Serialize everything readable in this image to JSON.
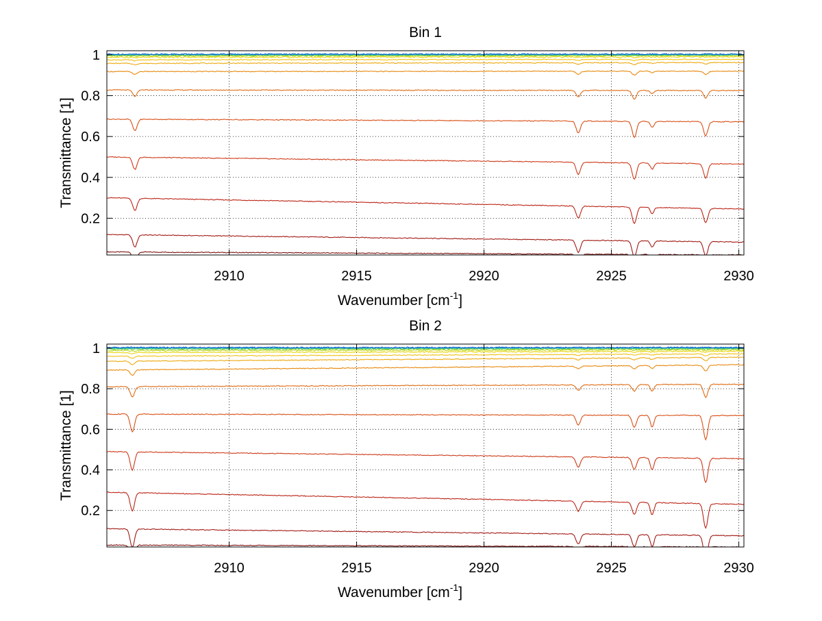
{
  "colors": {
    "background": "#ffffff",
    "axes": "#000000",
    "grid": "#000000"
  },
  "chart_data": [
    {
      "type": "line",
      "title": "Bin 1",
      "xlabel_main": "Wavenumber [cm",
      "xlabel_sup": "-1",
      "xlabel_end": "]",
      "ylabel": "Transmittance [1]",
      "xlim": [
        2905.2,
        2930.2
      ],
      "ylim": [
        0.02,
        1.02
      ],
      "xticks": [
        2910,
        2915,
        2920,
        2925,
        2930
      ],
      "yticks": [
        0.2,
        0.4,
        0.6,
        0.8,
        1
      ],
      "grid": true,
      "absorption_lines": [
        {
          "x": 2906.3,
          "width": 0.12,
          "rel_depth": 0.06
        },
        {
          "x": 2923.7,
          "width": 0.12,
          "rel_depth": 0.06
        },
        {
          "x": 2925.9,
          "width": 0.12,
          "rel_depth": 0.08
        },
        {
          "x": 2926.6,
          "width": 0.1,
          "rel_depth": 0.03
        },
        {
          "x": 2928.7,
          "width": 0.12,
          "rel_depth": 0.07
        }
      ],
      "series": [
        {
          "color": "#7f1010",
          "start": 0.035,
          "end": 0.02
        },
        {
          "color": "#a01812",
          "start": 0.12,
          "end": 0.083
        },
        {
          "color": "#bb2214",
          "start": 0.3,
          "end": 0.245
        },
        {
          "color": "#cd3816",
          "start": 0.5,
          "end": 0.465
        },
        {
          "color": "#d94e14",
          "start": 0.685,
          "end": 0.672
        },
        {
          "color": "#e06a10",
          "start": 0.828,
          "end": 0.825
        },
        {
          "color": "#e8880c",
          "start": 0.918,
          "end": 0.92
        },
        {
          "color": "#eea80e",
          "start": 0.958,
          "end": 0.962
        },
        {
          "color": "#f2c012",
          "start": 0.975,
          "end": 0.978
        },
        {
          "color": "#e8d40a",
          "start": 0.988,
          "end": 0.99
        },
        {
          "color": "#b8d81a",
          "start": 0.994,
          "end": 0.996
        },
        {
          "color": "#6cd040",
          "start": 0.998,
          "end": 0.999
        },
        {
          "color": "#30c08c",
          "start": 1.0,
          "end": 1.0
        },
        {
          "color": "#1aa6c4",
          "start": 1.002,
          "end": 1.002
        },
        {
          "color": "#1060d0",
          "start": 1.003,
          "end": 1.003
        }
      ]
    },
    {
      "type": "line",
      "title": "Bin 2",
      "xlabel_main": "Wavenumber [cm",
      "xlabel_sup": "-1",
      "xlabel_end": "]",
      "ylabel": "Transmittance [1]",
      "xlim": [
        2905.2,
        2930.2
      ],
      "ylim": [
        0.02,
        1.02
      ],
      "xticks": [
        2910,
        2915,
        2920,
        2925,
        2930
      ],
      "yticks": [
        0.2,
        0.4,
        0.6,
        0.8,
        1
      ],
      "grid": true,
      "absorption_lines": [
        {
          "x": 2906.2,
          "width": 0.12,
          "rel_depth": 0.09
        },
        {
          "x": 2923.7,
          "width": 0.12,
          "rel_depth": 0.05
        },
        {
          "x": 2925.9,
          "width": 0.12,
          "rel_depth": 0.06
        },
        {
          "x": 2926.6,
          "width": 0.1,
          "rel_depth": 0.06
        },
        {
          "x": 2928.7,
          "width": 0.12,
          "rel_depth": 0.12
        }
      ],
      "series": [
        {
          "color": "#7f1010",
          "start": 0.03,
          "end": 0.02
        },
        {
          "color": "#a01812",
          "start": 0.11,
          "end": 0.075
        },
        {
          "color": "#bb2214",
          "start": 0.29,
          "end": 0.23
        },
        {
          "color": "#cd3816",
          "start": 0.49,
          "end": 0.455
        },
        {
          "color": "#d94e14",
          "start": 0.675,
          "end": 0.668
        },
        {
          "color": "#e06a10",
          "start": 0.81,
          "end": 0.822
        },
        {
          "color": "#e8880c",
          "start": 0.892,
          "end": 0.918
        },
        {
          "color": "#eea80e",
          "start": 0.935,
          "end": 0.955
        },
        {
          "color": "#f2c012",
          "start": 0.96,
          "end": 0.972
        },
        {
          "color": "#e8d40a",
          "start": 0.978,
          "end": 0.985
        },
        {
          "color": "#b8d81a",
          "start": 0.988,
          "end": 0.992
        },
        {
          "color": "#6cd040",
          "start": 0.995,
          "end": 0.997
        },
        {
          "color": "#30c08c",
          "start": 0.999,
          "end": 1.0
        },
        {
          "color": "#1aa6c4",
          "start": 1.001,
          "end": 1.002
        },
        {
          "color": "#1060d0",
          "start": 1.003,
          "end": 1.003
        }
      ]
    }
  ]
}
